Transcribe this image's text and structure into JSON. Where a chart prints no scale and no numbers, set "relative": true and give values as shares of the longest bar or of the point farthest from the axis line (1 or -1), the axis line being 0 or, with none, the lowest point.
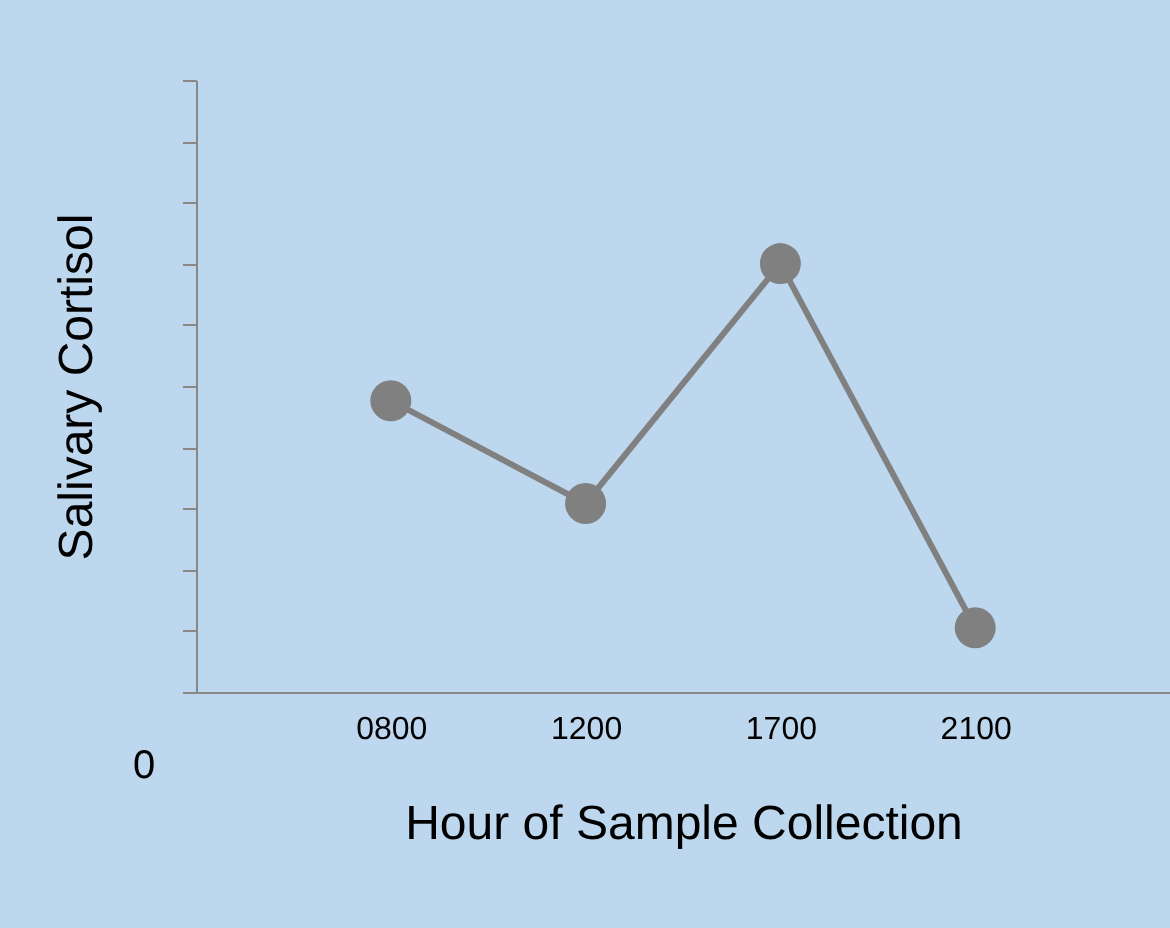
{
  "chart_data": {
    "type": "line",
    "xlabel": "Hour of Sample Collection",
    "ylabel": "Salivary Cortisol",
    "categories": [
      "0800",
      "1200",
      "1700",
      "2100"
    ],
    "series": [
      {
        "color": "#808080",
        "values": [
          0.68,
          0.44,
          1,
          0.15
        ]
      }
    ],
    "relative": true,
    "marker": "circle",
    "annotations": [
      "0"
    ]
  }
}
